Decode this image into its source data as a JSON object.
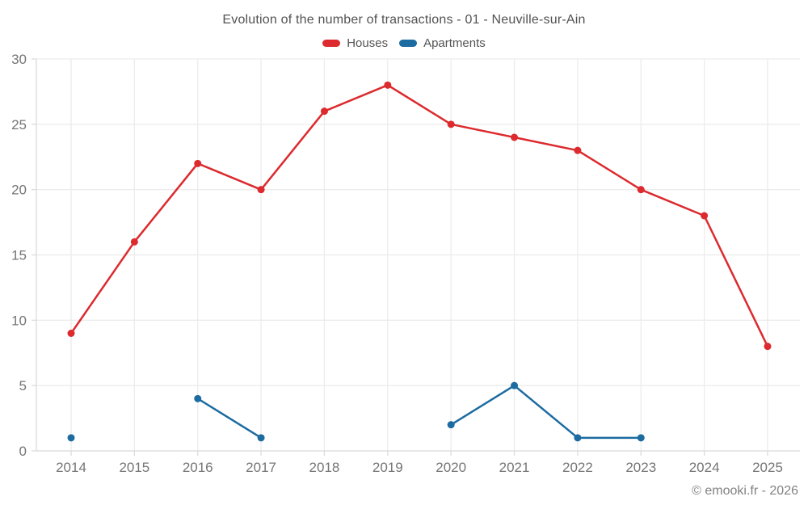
{
  "chart_data": {
    "type": "line",
    "title": "Evolution of the number of transactions - 01 - Neuville-sur-Ain",
    "x": [
      2014,
      2015,
      2016,
      2017,
      2018,
      2019,
      2020,
      2021,
      2022,
      2023,
      2024,
      2025
    ],
    "series": [
      {
        "name": "Houses",
        "color": "#dc2a2e",
        "values": [
          9,
          16,
          22,
          20,
          26,
          28,
          25,
          24,
          23,
          20,
          18,
          8
        ]
      },
      {
        "name": "Apartments",
        "color": "#1c6ba1",
        "values": [
          1,
          null,
          4,
          1,
          null,
          null,
          2,
          5,
          1,
          1,
          null,
          null
        ]
      }
    ],
    "ylim": [
      0,
      30
    ],
    "yticks": [
      0,
      5,
      10,
      15,
      20,
      25,
      30
    ],
    "grid": true,
    "legend_position": "top",
    "tick_color": "#757575",
    "grid_color": "#ececec",
    "axis_color": "#dcdcdc"
  },
  "footer": {
    "copyright": "© emooki.fr - 2026"
  }
}
